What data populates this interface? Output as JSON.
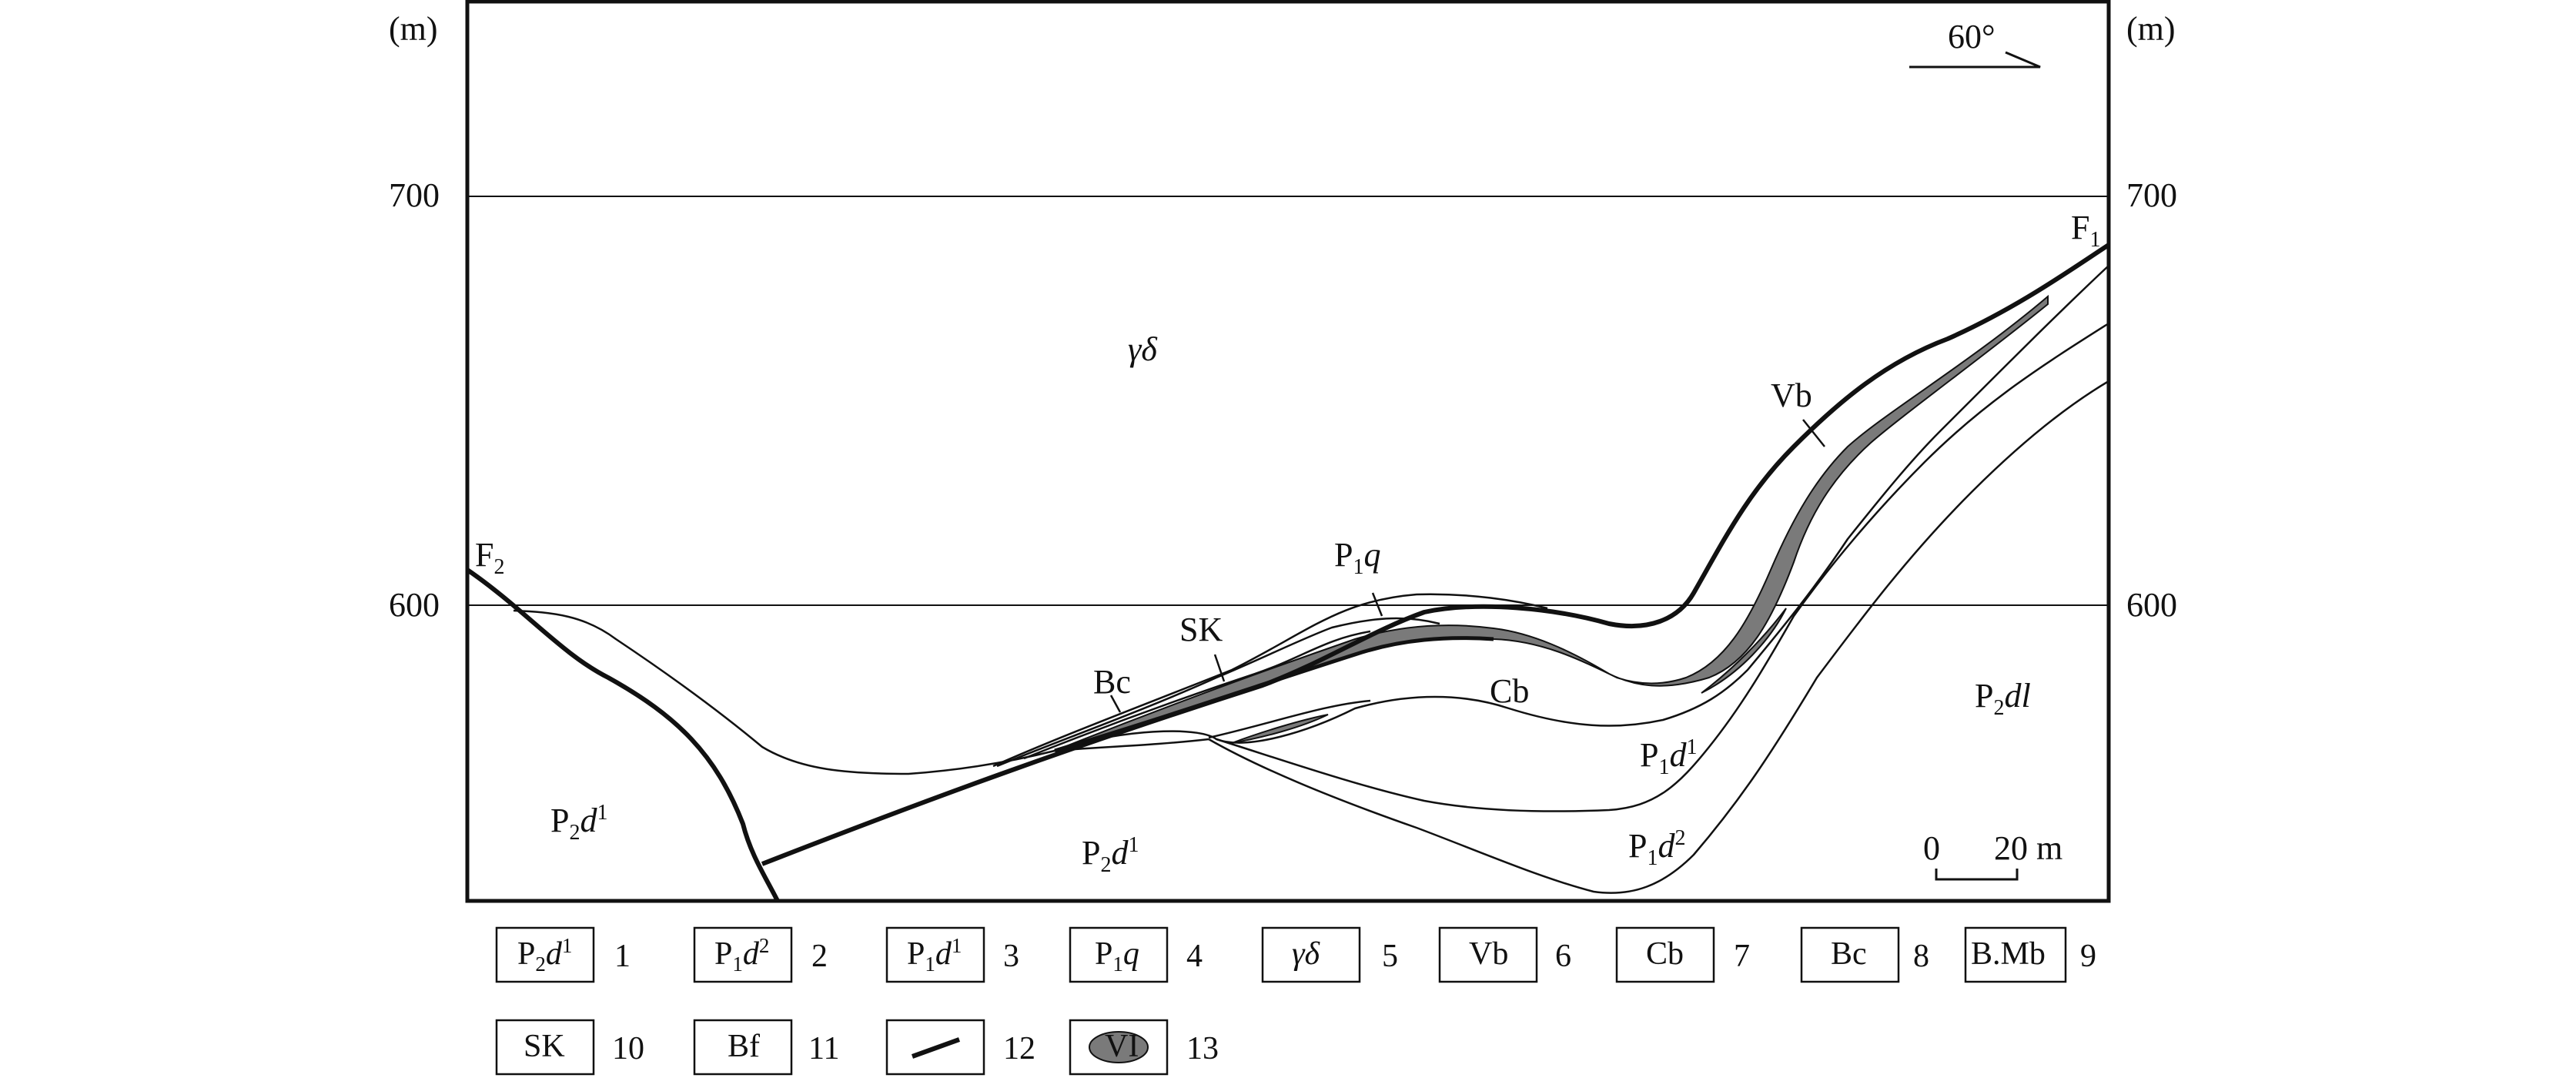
{
  "axis": {
    "unit_left": "(m)",
    "unit_right": "(m)",
    "tick_700_left": "700",
    "tick_700_right": "700",
    "tick_600_left": "600",
    "tick_600_right": "600"
  },
  "orientation": {
    "angle": "60°"
  },
  "scale": {
    "zero": "0",
    "twenty": "20 m"
  },
  "labels": {
    "F2": {
      "main": "F",
      "sub": "2"
    },
    "F1": {
      "main": "F",
      "sub": "1"
    },
    "gd": "γδ",
    "Vb": "Vb",
    "SK": "SK",
    "Bc": "Bc",
    "Cb": "Cb",
    "P1q": {
      "p": "P",
      "sub": "1",
      "rest": "q"
    },
    "P1d1_mid": {
      "p": "P",
      "sub": "1",
      "rest": "d",
      "sup": "1"
    },
    "P1d2": {
      "p": "P",
      "sub": "1",
      "rest": "d",
      "sup": "2"
    },
    "P2dl": {
      "p": "P",
      "sub": "2",
      "rest": "dl"
    },
    "P2d1_left": {
      "p": "P",
      "sub": "2",
      "rest": "d",
      "sup": "1"
    },
    "P2d1_center": {
      "p": "P",
      "sub": "2",
      "rest": "d",
      "sup": "1"
    }
  },
  "legend": {
    "items": [
      {
        "text_p": "P",
        "text_sub": "2",
        "text_rest": "d",
        "text_sup": "1",
        "num": "1"
      },
      {
        "text_p": "P",
        "text_sub": "1",
        "text_rest": "d",
        "text_sup": "2",
        "num": "2"
      },
      {
        "text_p": "P",
        "text_sub": "1",
        "text_rest": "d",
        "text_sup": "1",
        "num": "3"
      },
      {
        "text_p": "P",
        "text_sub": "1",
        "text_rest": "q",
        "num": "4"
      },
      {
        "text": "γδ",
        "num": "5"
      },
      {
        "text": "Vb",
        "num": "6"
      },
      {
        "text": "Cb",
        "num": "7"
      },
      {
        "text": "Bc",
        "num": "8"
      },
      {
        "text": "B.Mb",
        "num": "9"
      },
      {
        "text": "SK",
        "num": "10"
      },
      {
        "text": "Bf",
        "num": "11"
      },
      {
        "symbol": "line",
        "num": "12"
      },
      {
        "text": "VI",
        "symbol": "ore-body",
        "num": "13"
      }
    ]
  },
  "colors": {
    "ore_fill": "#7a7a7a",
    "line": "#111111"
  }
}
